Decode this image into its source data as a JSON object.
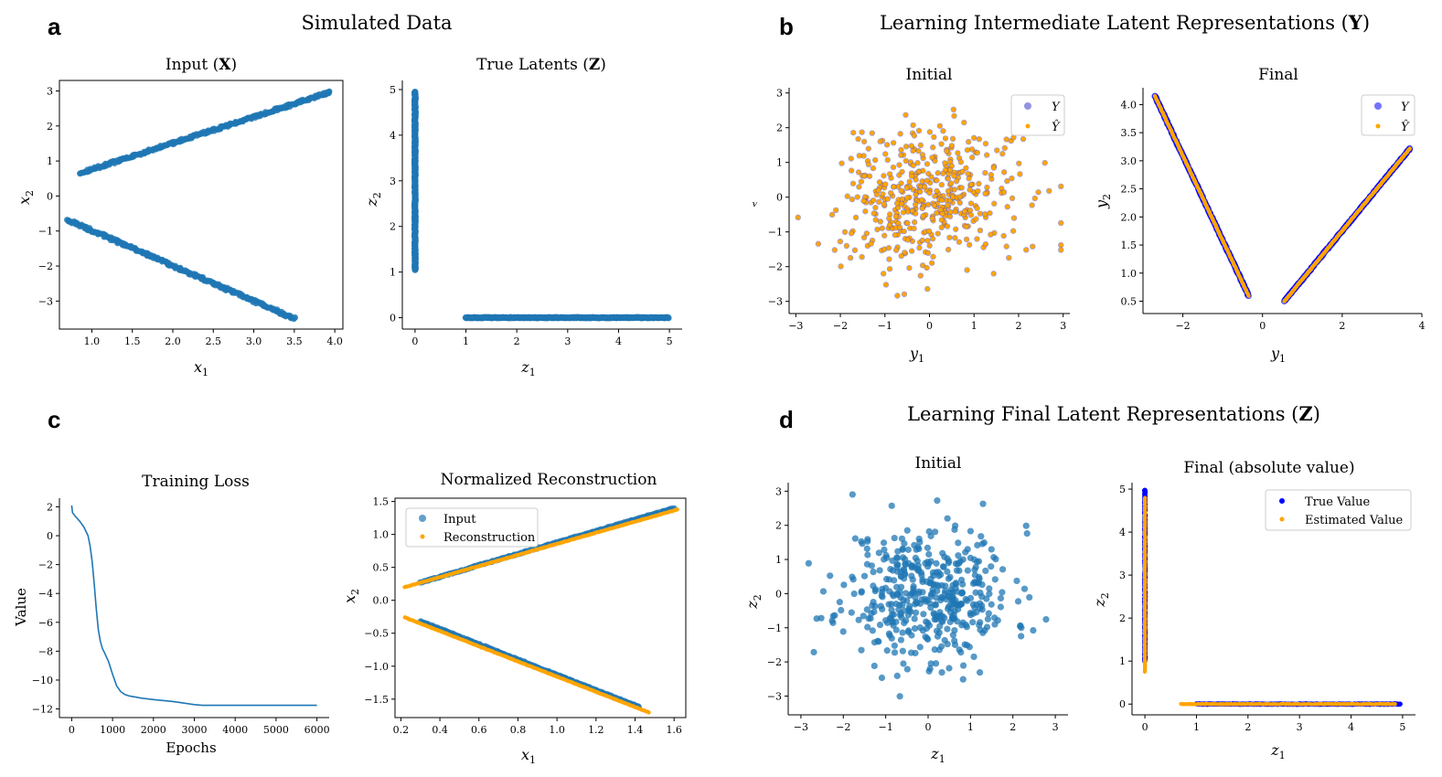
{
  "panel_a": {
    "letter": "a",
    "title": "Simulated Data",
    "input": {
      "title_prefix": "Input (",
      "title_bold": "X",
      "title_suffix": ")",
      "xlabel": "x",
      "xsub": "1",
      "ylabel": "x",
      "ysub": "2"
    },
    "true_latents": {
      "title_prefix": "True Latents (",
      "title_bold": "Z",
      "title_suffix": ")",
      "xlabel": "z",
      "xsub": "1",
      "ylabel": "z",
      "ysub": "2"
    }
  },
  "panel_b": {
    "letter": "b",
    "title_prefix": "Learning Intermediate Latent Representations (",
    "title_bold": "Y",
    "title_suffix": ")",
    "initial": {
      "title": "Initial",
      "xlabel": "y",
      "xsub": "1",
      "ylabel": "ᵥ",
      "legend": [
        "Y",
        "Ŷ"
      ]
    },
    "final": {
      "title": "Final",
      "xlabel": "y",
      "xsub": "1",
      "ylabel": "y",
      "ysub": "2",
      "legend": [
        "Y",
        "Ŷ"
      ]
    }
  },
  "panel_c": {
    "letter": "c",
    "loss": {
      "title": "Training Loss",
      "xlabel": "Epochs",
      "ylabel": "Value"
    },
    "recon": {
      "title": "Normalized Reconstruction",
      "xlabel": "x",
      "xsub": "1",
      "ylabel": "x",
      "ysub": "2",
      "legend": [
        "Input",
        "Reconstruction"
      ]
    }
  },
  "panel_d": {
    "letter": "d",
    "title_prefix": "Learning Final Latent Representations (",
    "title_bold": "Z",
    "title_suffix": ")",
    "initial": {
      "title": "Initial",
      "xlabel": "z",
      "xsub": "1",
      "ylabel": "z",
      "ysub": "2"
    },
    "final": {
      "title": "Final (absolute value)",
      "xlabel": "z",
      "xsub": "1",
      "ylabel": "z",
      "ysub": "2",
      "legend": [
        "True Value",
        "Estimated Value"
      ]
    }
  },
  "colors": {
    "blue": "#1f77b4",
    "orange": "#ffa500",
    "pure_blue": "#0000ff"
  },
  "chart_data": [
    {
      "id": "input_x",
      "type": "scatter",
      "title": "Input (X)",
      "xlabel": "x1",
      "ylabel": "x2",
      "xlim": [
        0.6,
        4.1
      ],
      "ylim": [
        -3.8,
        3.3
      ],
      "xticks": [
        1.0,
        1.5,
        2.0,
        2.5,
        3.0,
        3.5,
        4.0
      ],
      "xtick_labels": [
        "1.0",
        "1.5",
        "2.0",
        "2.5",
        "3.0",
        "3.5",
        "4.0"
      ],
      "yticks": [
        -3,
        -2,
        -1,
        0,
        1,
        2,
        3
      ],
      "ytick_labels": [
        "−3",
        "−2",
        "−1",
        "0",
        "1",
        "2",
        "3"
      ],
      "segments": [
        {
          "from": [
            0.85,
            0.65
          ],
          "to": [
            3.95,
            2.97
          ]
        },
        {
          "from": [
            0.7,
            -0.68
          ],
          "to": [
            3.5,
            -3.5
          ]
        }
      ],
      "series": [
        {
          "name": "x",
          "color": "#1f77b4"
        }
      ]
    },
    {
      "id": "true_latents",
      "type": "scatter",
      "title": "True Latents (Z)",
      "xlabel": "z1",
      "ylabel": "z2",
      "xlim": [
        -0.25,
        5.25
      ],
      "ylim": [
        -0.25,
        5.2
      ],
      "xticks": [
        0,
        1,
        2,
        3,
        4,
        5
      ],
      "xtick_labels": [
        "0",
        "1",
        "2",
        "3",
        "4",
        "5"
      ],
      "yticks": [
        0,
        1,
        2,
        3,
        4,
        5
      ],
      "ytick_labels": [
        "0",
        "1",
        "2",
        "3",
        "4",
        "5"
      ],
      "segments": [
        {
          "from": [
            0,
            1.05
          ],
          "to": [
            0,
            4.95
          ]
        },
        {
          "from": [
            1.0,
            0
          ],
          "to": [
            4.98,
            0
          ]
        }
      ],
      "series": [
        {
          "name": "z",
          "color": "#1f77b4"
        }
      ]
    },
    {
      "id": "y_initial",
      "type": "scatter",
      "title": "Initial",
      "xlabel": "y1",
      "ylabel": "",
      "xlim": [
        -3.15,
        3.15
      ],
      "ylim": [
        -3.35,
        3.15
      ],
      "xticks": [
        -3,
        -2,
        -1,
        0,
        1,
        2,
        3
      ],
      "xtick_labels": [
        "−3",
        "−2",
        "−1",
        "0",
        "1",
        "2",
        "3"
      ],
      "yticks": [
        -3,
        -2,
        -1,
        0,
        1,
        2,
        3
      ],
      "ytick_labels": [
        "−3",
        "−2",
        "−1",
        "0",
        "1",
        "2",
        "3"
      ],
      "cloud": {
        "mean": [
          0,
          0
        ],
        "std": [
          1.0,
          1.0
        ],
        "n": 450,
        "seed": 7
      },
      "series": [
        {
          "name": "Y",
          "color": "#4b4bd0"
        },
        {
          "name": "Ŷ",
          "color": "#ffa500"
        }
      ]
    },
    {
      "id": "y_final",
      "type": "scatter",
      "title": "Final",
      "xlabel": "y1",
      "ylabel": "y2",
      "xlim": [
        -3.0,
        4.0
      ],
      "ylim": [
        0.28,
        4.3
      ],
      "xticks": [
        -2,
        0,
        2,
        4
      ],
      "xtick_labels": [
        "−2",
        "0",
        "2",
        "4"
      ],
      "yticks": [
        0.5,
        1.0,
        1.5,
        2.0,
        2.5,
        3.0,
        3.5,
        4.0
      ],
      "ytick_labels": [
        "0.5",
        "1.0",
        "1.5",
        "2.0",
        "2.5",
        "3.0",
        "3.5",
        "4.0"
      ],
      "segments": [
        {
          "from": [
            -2.7,
            4.15
          ],
          "to": [
            -0.35,
            0.6
          ]
        },
        {
          "from": [
            0.55,
            0.5
          ],
          "to": [
            3.7,
            3.22
          ]
        }
      ],
      "series": [
        {
          "name": "Y",
          "color": "#0000ff"
        },
        {
          "name": "Ŷ",
          "color": "#ffa500"
        }
      ]
    },
    {
      "id": "training_loss",
      "type": "line",
      "title": "Training Loss",
      "xlabel": "Epochs",
      "ylabel": "Value",
      "xlim": [
        -300,
        6300
      ],
      "ylim": [
        -12.6,
        2.6
      ],
      "xticks": [
        0,
        1000,
        2000,
        3000,
        4000,
        5000,
        6000
      ],
      "xtick_labels": [
        "0",
        "1000",
        "2000",
        "3000",
        "4000",
        "5000",
        "6000"
      ],
      "yticks": [
        -12,
        -10,
        -8,
        -6,
        -4,
        -2,
        0,
        2
      ],
      "ytick_labels": [
        "−12",
        "−10",
        "−8",
        "−6",
        "−4",
        "−2",
        "0",
        "2"
      ],
      "x": [
        0,
        20,
        100,
        200,
        300,
        400,
        450,
        500,
        550,
        600,
        650,
        700,
        750,
        800,
        900,
        1000,
        1100,
        1200,
        1300,
        1400,
        1500,
        1700,
        2000,
        2500,
        3000,
        3200,
        3300,
        4000,
        5000,
        6000
      ],
      "y": [
        2.1,
        1.6,
        1.3,
        1.0,
        0.6,
        0.0,
        -0.7,
        -1.8,
        -3.3,
        -5.0,
        -6.5,
        -7.3,
        -7.8,
        -8.1,
        -8.7,
        -9.6,
        -10.4,
        -10.8,
        -11.0,
        -11.1,
        -11.15,
        -11.25,
        -11.35,
        -11.5,
        -11.7,
        -11.75,
        -11.75,
        -11.75,
        -11.75,
        -11.75
      ],
      "series": [
        {
          "name": "loss",
          "color": "#1f77b4"
        }
      ]
    },
    {
      "id": "normalized_reconstruction",
      "type": "scatter",
      "title": "Normalized Reconstruction",
      "xlabel": "x1",
      "ylabel": "x2",
      "xlim": [
        0.17,
        1.66
      ],
      "ylim": [
        -1.78,
        1.55
      ],
      "xticks": [
        0.2,
        0.4,
        0.6,
        0.8,
        1.0,
        1.2,
        1.4,
        1.6
      ],
      "xtick_labels": [
        "0.2",
        "0.4",
        "0.6",
        "0.8",
        "1.0",
        "1.2",
        "1.4",
        "1.6"
      ],
      "yticks": [
        -1.5,
        -1.0,
        -0.5,
        0.0,
        0.5,
        1.0,
        1.5
      ],
      "ytick_labels": [
        "−1.5",
        "−1.0",
        "−0.5",
        "0.0",
        "0.5",
        "1.0",
        "1.5"
      ],
      "input_segments": [
        {
          "from": [
            0.3,
            0.27
          ],
          "to": [
            1.6,
            1.4
          ]
        },
        {
          "from": [
            0.3,
            -0.32
          ],
          "to": [
            1.42,
            -1.62
          ]
        }
      ],
      "recon_segments": [
        {
          "from": [
            0.22,
            0.2
          ],
          "to": [
            1.62,
            1.38
          ]
        },
        {
          "from": [
            0.22,
            -0.26
          ],
          "to": [
            1.47,
            -1.7
          ]
        }
      ],
      "series": [
        {
          "name": "Input",
          "color": "#1f77b4"
        },
        {
          "name": "Reconstruction",
          "color": "#ffa500"
        }
      ]
    },
    {
      "id": "z_initial",
      "type": "scatter",
      "title": "Initial",
      "xlabel": "z1",
      "ylabel": "z2",
      "xlim": [
        -3.3,
        3.3
      ],
      "ylim": [
        -3.55,
        3.25
      ],
      "xticks": [
        -3,
        -2,
        -1,
        0,
        1,
        2,
        3
      ],
      "xtick_labels": [
        "−3",
        "−2",
        "−1",
        "0",
        "1",
        "2",
        "3"
      ],
      "yticks": [
        -3,
        -2,
        -1,
        0,
        1,
        2,
        3
      ],
      "ytick_labels": [
        "−3",
        "−2",
        "−1",
        "0",
        "1",
        "2",
        "3"
      ],
      "cloud": {
        "mean": [
          0,
          0
        ],
        "std": [
          1.0,
          1.0
        ],
        "n": 450,
        "seed": 11
      },
      "series": [
        {
          "name": "z",
          "color": "#1f77b4"
        }
      ]
    },
    {
      "id": "z_final",
      "type": "scatter",
      "title": "Final (absolute value)",
      "xlabel": "z1",
      "ylabel": "z2",
      "xlim": [
        -0.25,
        5.25
      ],
      "ylim": [
        -0.25,
        5.15
      ],
      "xticks": [
        0,
        1,
        2,
        3,
        4,
        5
      ],
      "xtick_labels": [
        "0",
        "1",
        "2",
        "3",
        "4",
        "5"
      ],
      "yticks": [
        0,
        1,
        2,
        3,
        4,
        5
      ],
      "ytick_labels": [
        "0",
        "1",
        "2",
        "3",
        "4",
        "5"
      ],
      "true_segments": [
        {
          "from": [
            0,
            1.0
          ],
          "to": [
            0,
            4.98
          ]
        },
        {
          "from": [
            1.0,
            0
          ],
          "to": [
            4.95,
            0
          ]
        }
      ],
      "est_segments": [
        {
          "from": [
            0,
            0.75
          ],
          "to": [
            0,
            4.8
          ]
        },
        {
          "from": [
            0.7,
            0
          ],
          "to": [
            4.85,
            0
          ]
        }
      ],
      "series": [
        {
          "name": "True Value",
          "color": "#0000ff"
        },
        {
          "name": "Estimated Value",
          "color": "#ffa500"
        }
      ]
    }
  ]
}
